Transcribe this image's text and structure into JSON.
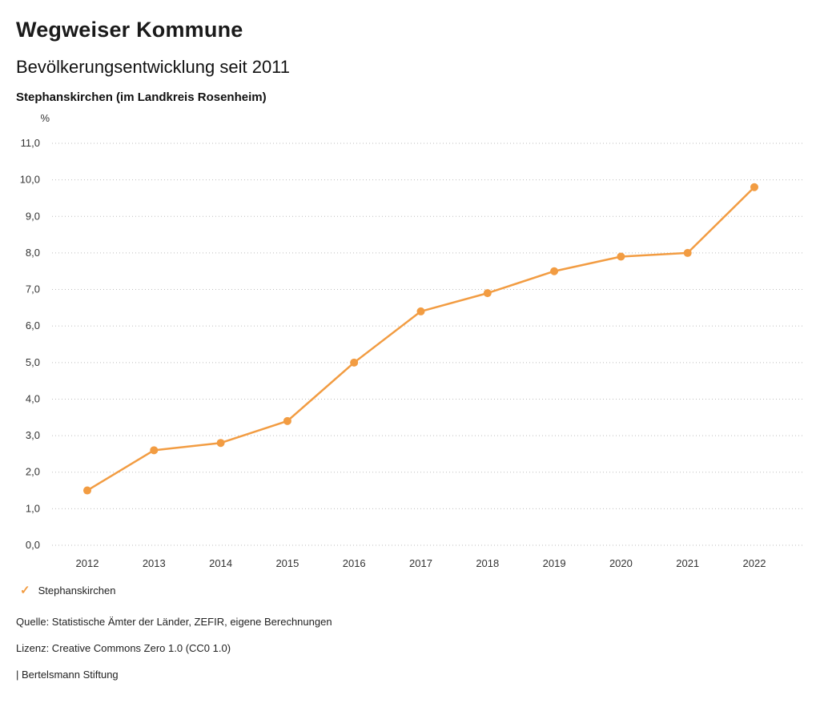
{
  "header": {
    "brand": "Wegweiser Kommune",
    "title": "Bevölkerungsentwicklung seit 2011",
    "subtitle": "Stephanskirchen (im Landkreis Rosenheim)"
  },
  "chart_data": {
    "type": "line",
    "title": "Bevölkerungsentwicklung seit 2011",
    "unit": "%",
    "x": [
      "2012",
      "2013",
      "2014",
      "2015",
      "2016",
      "2017",
      "2018",
      "2019",
      "2020",
      "2021",
      "2022"
    ],
    "series": [
      {
        "name": "Stephanskirchen",
        "values": [
          1.5,
          2.6,
          2.8,
          3.4,
          5.0,
          6.4,
          6.9,
          7.5,
          7.9,
          8.0,
          9.8
        ],
        "color": "#f29c42"
      }
    ],
    "ylim": [
      0.0,
      11.0
    ],
    "ytick_step": 1.0,
    "ytick_labels": [
      "0,0",
      "1,0",
      "2,0",
      "3,0",
      "4,0",
      "5,0",
      "6,0",
      "7,0",
      "8,0",
      "9,0",
      "10,0",
      "11,0"
    ],
    "grid": "horizontal-dotted",
    "legend_position": "bottom-left",
    "marker": "circle"
  },
  "legend": {
    "items": [
      {
        "label": "Stephanskirchen",
        "marker": "check",
        "marker_glyph": "✓",
        "color": "#f29c42"
      }
    ]
  },
  "footer": {
    "source": "Quelle: Statistische Ämter der Länder, ZEFIR, eigene Berechnungen",
    "license": "Lizenz: Creative Commons Zero 1.0 (CC0 1.0)",
    "attribution": "| Bertelsmann Stiftung"
  }
}
